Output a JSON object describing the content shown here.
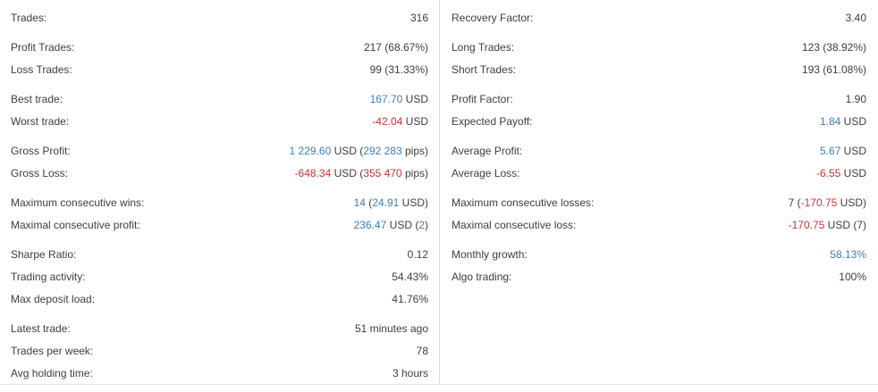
{
  "palette": {
    "background": "#ffffff",
    "text": "#3e3e3e",
    "blue": "#3f7cc0",
    "red": "#cc3333",
    "divider": "#dcdcdc",
    "border_bottom": "#e4e4e4"
  },
  "columns": {
    "left": {
      "groups": [
        {
          "rows": [
            {
              "label": "Trades:",
              "segments": [
                {
                  "text": "316",
                  "color": "text"
                }
              ]
            }
          ]
        },
        {
          "rows": [
            {
              "label": "Profit Trades:",
              "segments": [
                {
                  "text": "217 (68.67%)",
                  "color": "text"
                }
              ]
            },
            {
              "label": "Loss Trades:",
              "segments": [
                {
                  "text": "99 (31.33%)",
                  "color": "text"
                }
              ]
            }
          ]
        },
        {
          "rows": [
            {
              "label": "Best trade:",
              "segments": [
                {
                  "text": "167.70",
                  "color": "blue"
                },
                {
                  "text": " USD",
                  "color": "text"
                }
              ]
            },
            {
              "label": "Worst trade:",
              "segments": [
                {
                  "text": "-42.04",
                  "color": "red"
                },
                {
                  "text": " USD",
                  "color": "text"
                }
              ]
            }
          ]
        },
        {
          "rows": [
            {
              "label": "Gross Profit:",
              "segments": [
                {
                  "text": "1 229.60",
                  "color": "blue"
                },
                {
                  "text": " USD (",
                  "color": "text"
                },
                {
                  "text": "292 283",
                  "color": "blue"
                },
                {
                  "text": " pips)",
                  "color": "text"
                }
              ]
            },
            {
              "label": "Gross Loss:",
              "segments": [
                {
                  "text": "-648.34",
                  "color": "red"
                },
                {
                  "text": " USD (",
                  "color": "text"
                },
                {
                  "text": "355 470",
                  "color": "red"
                },
                {
                  "text": " pips)",
                  "color": "text"
                }
              ]
            }
          ]
        },
        {
          "rows": [
            {
              "label": "Maximum consecutive wins:",
              "segments": [
                {
                  "text": "14",
                  "color": "blue"
                },
                {
                  "text": " (",
                  "color": "text"
                },
                {
                  "text": "24.91",
                  "color": "blue"
                },
                {
                  "text": " USD)",
                  "color": "text"
                }
              ]
            },
            {
              "label": "Maximal consecutive profit:",
              "segments": [
                {
                  "text": "236.47",
                  "color": "blue"
                },
                {
                  "text": " USD (",
                  "color": "text"
                },
                {
                  "text": "2",
                  "color": "blue"
                },
                {
                  "text": ")",
                  "color": "text"
                }
              ]
            }
          ]
        },
        {
          "rows": [
            {
              "label": "Sharpe Ratio:",
              "segments": [
                {
                  "text": "0.12",
                  "color": "text"
                }
              ]
            },
            {
              "label": "Trading activity:",
              "segments": [
                {
                  "text": "54.43%",
                  "color": "text"
                }
              ]
            },
            {
              "label": "Max deposit load:",
              "segments": [
                {
                  "text": "41.76%",
                  "color": "text"
                }
              ]
            }
          ]
        },
        {
          "rows": [
            {
              "label": "Latest trade:",
              "segments": [
                {
                  "text": "51 minutes ago",
                  "color": "text"
                }
              ]
            },
            {
              "label": "Trades per week:",
              "segments": [
                {
                  "text": "78",
                  "color": "text"
                }
              ]
            },
            {
              "label": "Avg holding time:",
              "segments": [
                {
                  "text": "3 hours",
                  "color": "text"
                }
              ]
            }
          ]
        }
      ]
    },
    "right": {
      "groups": [
        {
          "rows": [
            {
              "label": "Recovery Factor:",
              "segments": [
                {
                  "text": "3.40",
                  "color": "text"
                }
              ]
            }
          ]
        },
        {
          "rows": [
            {
              "label": "Long Trades:",
              "segments": [
                {
                  "text": "123 (38.92%)",
                  "color": "text"
                }
              ]
            },
            {
              "label": "Short Trades:",
              "segments": [
                {
                  "text": "193 (61.08%)",
                  "color": "text"
                }
              ]
            }
          ]
        },
        {
          "rows": [
            {
              "label": "Profit Factor:",
              "segments": [
                {
                  "text": "1.90",
                  "color": "text"
                }
              ]
            },
            {
              "label": "Expected Payoff:",
              "segments": [
                {
                  "text": "1.84",
                  "color": "blue"
                },
                {
                  "text": " USD",
                  "color": "text"
                }
              ]
            }
          ]
        },
        {
          "rows": [
            {
              "label": "Average Profit:",
              "segments": [
                {
                  "text": "5.67",
                  "color": "blue"
                },
                {
                  "text": " USD",
                  "color": "text"
                }
              ]
            },
            {
              "label": "Average Loss:",
              "segments": [
                {
                  "text": "-6.55",
                  "color": "red"
                },
                {
                  "text": " USD",
                  "color": "text"
                }
              ]
            }
          ]
        },
        {
          "rows": [
            {
              "label": "Maximum consecutive losses:",
              "segments": [
                {
                  "text": "7 (",
                  "color": "text"
                },
                {
                  "text": "-170.75",
                  "color": "red"
                },
                {
                  "text": " USD)",
                  "color": "text"
                }
              ]
            },
            {
              "label": "Maximal consecutive loss:",
              "segments": [
                {
                  "text": "-170.75",
                  "color": "red"
                },
                {
                  "text": " USD (7)",
                  "color": "text"
                }
              ]
            }
          ]
        },
        {
          "rows": [
            {
              "label": "Monthly growth:",
              "segments": [
                {
                  "text": "58.13%",
                  "color": "blue"
                }
              ]
            },
            {
              "label": "Algo trading:",
              "segments": [
                {
                  "text": "100%",
                  "color": "text"
                }
              ]
            }
          ]
        }
      ]
    }
  }
}
